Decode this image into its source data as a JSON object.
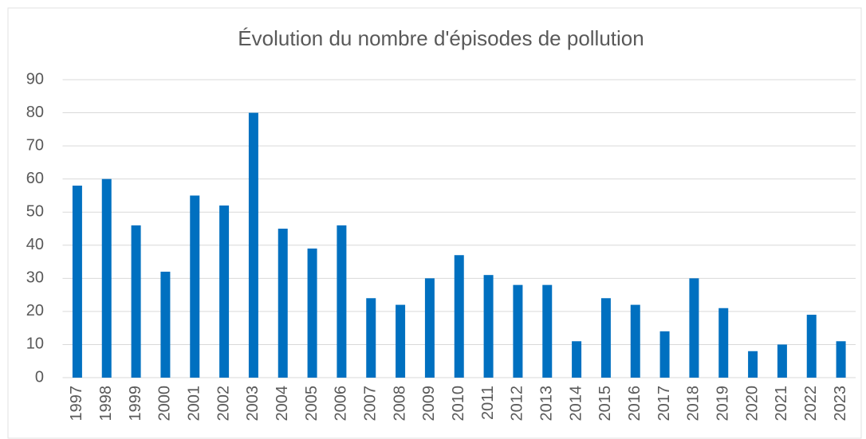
{
  "chart_data": {
    "type": "bar",
    "title": "Évolution du nombre d'épisodes de pollution",
    "categories": [
      "1997",
      "1998",
      "1999",
      "2000",
      "2001",
      "2002",
      "2003",
      "2004",
      "2005",
      "2006",
      "2007",
      "2008",
      "2009",
      "2010",
      "2011",
      "2012",
      "2013",
      "2014",
      "2015",
      "2016",
      "2017",
      "2018",
      "2019",
      "2020",
      "2021",
      "2022",
      "2023"
    ],
    "values": [
      58,
      60,
      46,
      32,
      55,
      52,
      80,
      45,
      39,
      46,
      24,
      22,
      30,
      37,
      31,
      28,
      28,
      11,
      24,
      22,
      14,
      30,
      21,
      8,
      10,
      19,
      11
    ],
    "color": "#0070c0",
    "ylim": [
      0,
      90
    ],
    "yticks": [
      0,
      10,
      20,
      30,
      40,
      50,
      60,
      70,
      80,
      90
    ],
    "grid": true
  }
}
